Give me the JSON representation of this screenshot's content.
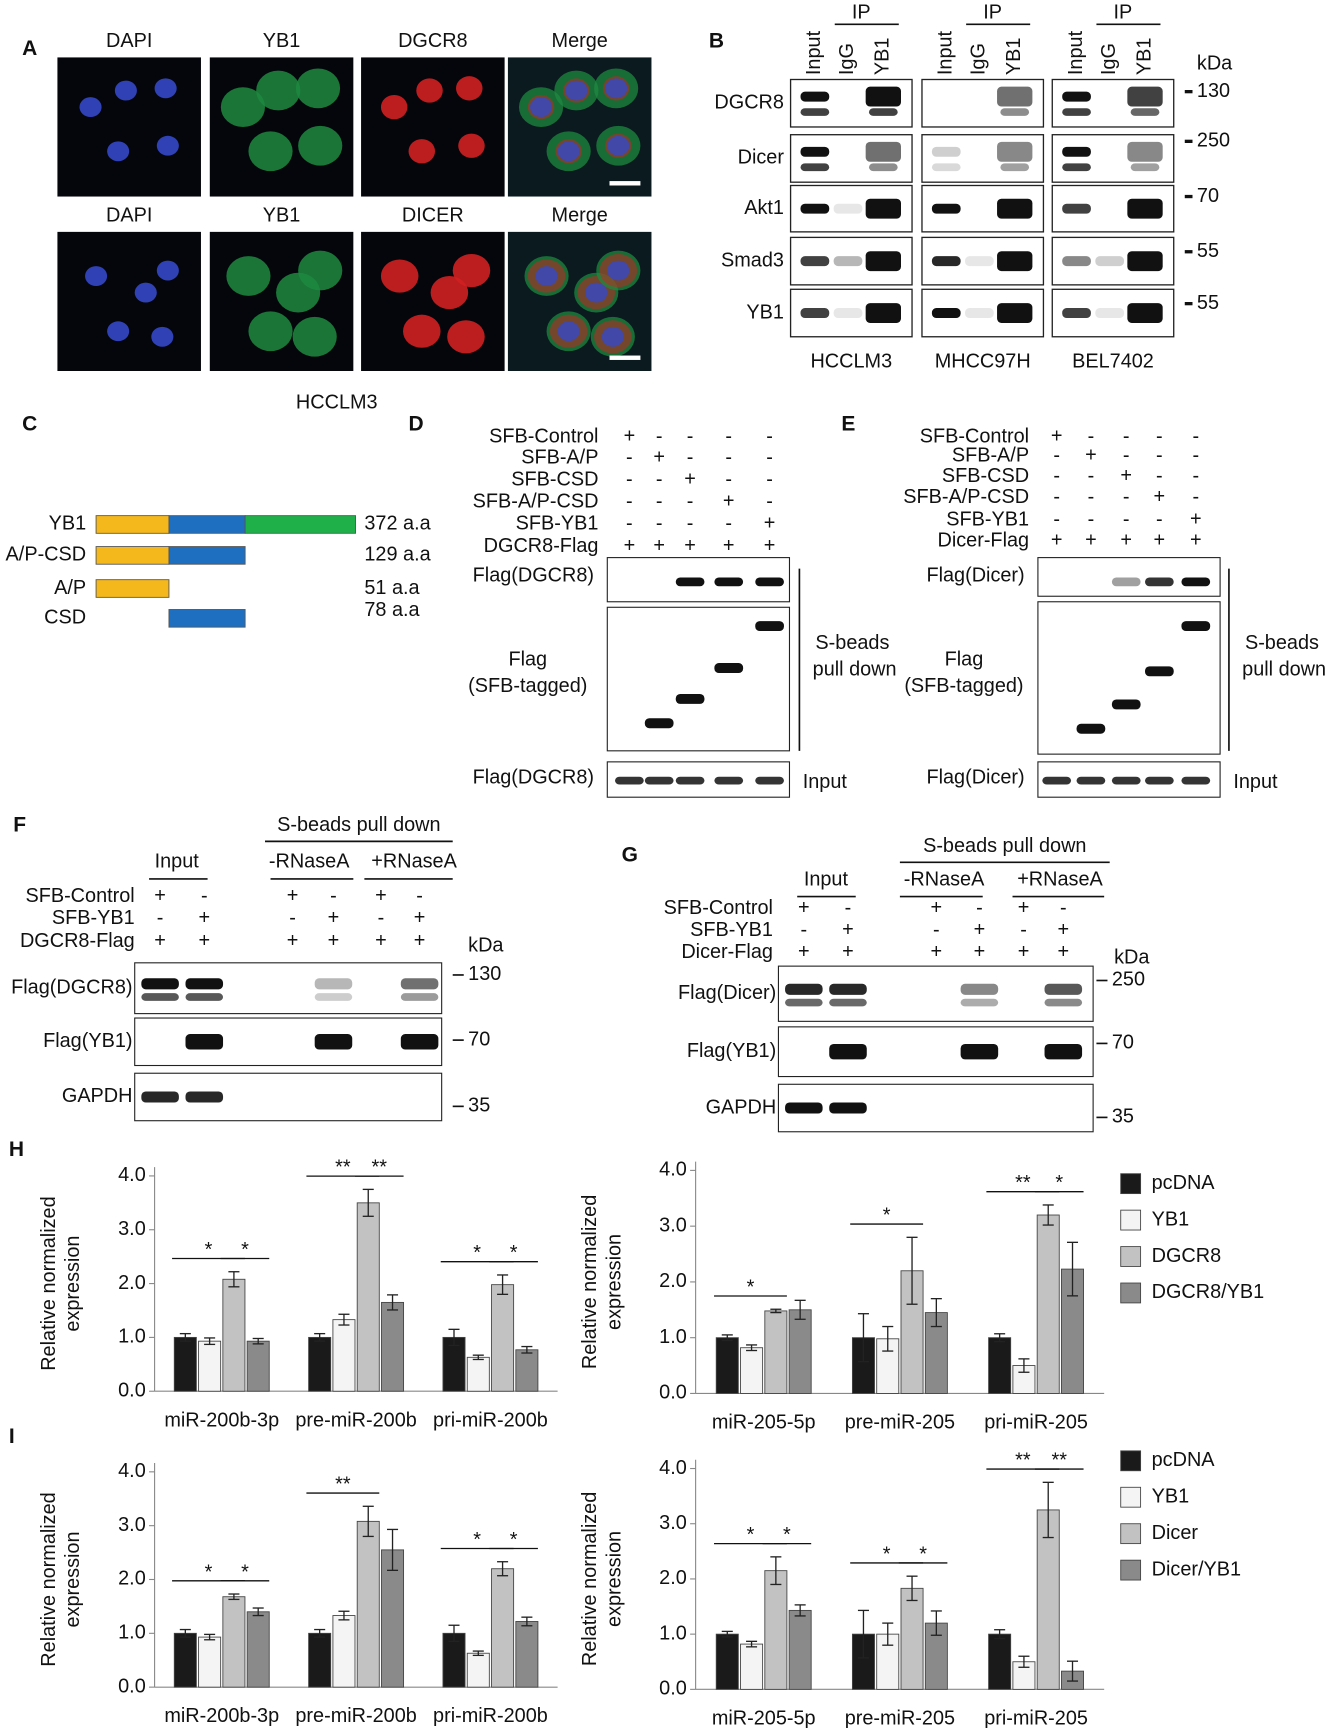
{
  "panel_a": {
    "label": "A",
    "row1": [
      "DAPI",
      "YB1",
      "DGCR8",
      "Merge"
    ],
    "row2": [
      "DAPI",
      "YB1",
      "DICER",
      "Merge"
    ],
    "cell_line": "HCCLM3"
  },
  "panel_b": {
    "label": "B",
    "ip_groups": [
      {
        "ip": "IP",
        "lanes": [
          "Input",
          "IgG",
          "YB1"
        ]
      },
      {
        "ip": "IP",
        "lanes": [
          "Input",
          "IgG",
          "YB1"
        ]
      },
      {
        "ip": "IP",
        "lanes": [
          "Input",
          "IgG",
          "YB1"
        ]
      }
    ],
    "kda": "kDa",
    "proteins": [
      "DGCR8",
      "Dicer",
      "Akt1",
      "Smad3",
      "YB1"
    ],
    "markers": [
      130,
      250,
      70,
      55,
      55
    ],
    "cell_lines": [
      "HCCLM3",
      "MHCC97H",
      "BEL7402"
    ]
  },
  "panel_c": {
    "label": "C",
    "constructs": [
      {
        "name": "YB1",
        "length": "372 a.a"
      },
      {
        "name": "A/P-CSD",
        "length": "129 a.a"
      },
      {
        "name": "A/P",
        "length": "51 a.a"
      },
      {
        "name": "CSD",
        "length": "78 a.a"
      }
    ]
  },
  "panel_d": {
    "label": "D",
    "conditions": [
      {
        "name": "SFB-Control",
        "signs": [
          "+",
          "-",
          "-",
          "-",
          "-"
        ]
      },
      {
        "name": "SFB-A/P",
        "signs": [
          "-",
          "+",
          "-",
          "-",
          "-"
        ]
      },
      {
        "name": "SFB-CSD",
        "signs": [
          "-",
          "-",
          "+",
          "-",
          "-"
        ]
      },
      {
        "name": "SFB-A/P-CSD",
        "signs": [
          "-",
          "-",
          "-",
          "+",
          "-"
        ]
      },
      {
        "name": "SFB-YB1",
        "signs": [
          "-",
          "-",
          "-",
          "-",
          "+"
        ]
      },
      {
        "name": "DGCR8-Flag",
        "signs": [
          "+",
          "+",
          "+",
          "+",
          "+"
        ]
      }
    ],
    "blots": [
      "Flag(DGCR8)",
      [
        "Flag",
        "(SFB-tagged)"
      ],
      "Flag(DGCR8)"
    ],
    "pulldown": [
      "S-beads",
      "pull down"
    ],
    "input": "Input"
  },
  "panel_e": {
    "label": "E",
    "conditions": [
      {
        "name": "SFB-Control",
        "signs": [
          "+",
          "-",
          "-",
          "-",
          "-"
        ]
      },
      {
        "name": "SFB-A/P",
        "signs": [
          "-",
          "+",
          "-",
          "-",
          "-"
        ]
      },
      {
        "name": "SFB-CSD",
        "signs": [
          "-",
          "-",
          "+",
          "-",
          "-"
        ]
      },
      {
        "name": "SFB-A/P-CSD",
        "signs": [
          "-",
          "-",
          "-",
          "+",
          "-"
        ]
      },
      {
        "name": "SFB-YB1",
        "signs": [
          "-",
          "-",
          "-",
          "-",
          "+"
        ]
      },
      {
        "name": "Dicer-Flag",
        "signs": [
          "+",
          "+",
          "+",
          "+",
          "+"
        ]
      }
    ],
    "blots": [
      "Flag(Dicer)",
      [
        "Flag",
        "(SFB-tagged)"
      ],
      "Flag(Dicer)"
    ],
    "pulldown": [
      "S-beads",
      "pull down"
    ],
    "input": "Input"
  },
  "panel_f": {
    "label": "F",
    "pulldown": "S-beads pull down",
    "input": "Input",
    "treatments": [
      "-RNaseA",
      "+RNaseA"
    ],
    "conditions": [
      {
        "name": "SFB-Control",
        "signs": [
          "+",
          "-",
          "+",
          "-",
          "+",
          "-"
        ]
      },
      {
        "name": "SFB-YB1",
        "signs": [
          "-",
          "+",
          "-",
          "+",
          "-",
          "+"
        ]
      },
      {
        "name": "DGCR8-Flag",
        "signs": [
          "+",
          "+",
          "+",
          "+",
          "+",
          "+"
        ]
      }
    ],
    "kda": "kDa",
    "blots": [
      "Flag(DGCR8)",
      "Flag(YB1)",
      "GAPDH"
    ],
    "markers": [
      130,
      70,
      35
    ]
  },
  "panel_g": {
    "label": "G",
    "pulldown": "S-beads pull down",
    "input": "Input",
    "treatments": [
      "-RNaseA",
      "+RNaseA"
    ],
    "conditions": [
      {
        "name": "SFB-Control",
        "signs": [
          "+",
          "-",
          "+",
          "-",
          "+",
          "-"
        ]
      },
      {
        "name": "SFB-YB1",
        "signs": [
          "-",
          "+",
          "-",
          "+",
          "-",
          "+"
        ]
      },
      {
        "name": "Dicer-Flag",
        "signs": [
          "+",
          "+",
          "+",
          "+",
          "+",
          "+"
        ]
      }
    ],
    "kda": "kDa",
    "blots": [
      "Flag(Dicer)",
      "Flag(YB1)",
      "GAPDH"
    ],
    "markers": [
      250,
      70,
      35
    ]
  },
  "panel_h": "H",
  "panel_i": "I",
  "chart_data": [
    {
      "type": "bar",
      "ylabel": [
        "Relative normalized",
        "expression"
      ],
      "categories": [
        "miR-200b-3p",
        "pre-miR-200b",
        "pri-miR-200b"
      ],
      "series": [
        {
          "name": "pcDNA",
          "color": "#1a1a1a",
          "values": [
            1.0,
            1.0,
            1.0
          ],
          "errors": [
            0.07,
            0.07,
            0.15
          ]
        },
        {
          "name": "YB1",
          "color": "#f4f4f4",
          "values": [
            0.93,
            1.33,
            0.63
          ],
          "errors": [
            0.06,
            0.1,
            0.04
          ]
        },
        {
          "name": "DGCR8",
          "color": "#c2c2c2",
          "values": [
            2.08,
            3.5,
            1.98
          ],
          "errors": [
            0.14,
            0.25,
            0.18
          ]
        },
        {
          "name": "DGCR8/YB1",
          "color": "#8a8a8a",
          "values": [
            0.93,
            1.65,
            0.77
          ],
          "errors": [
            0.05,
            0.14,
            0.06
          ]
        }
      ],
      "ylim": [
        0,
        4
      ],
      "yticks": [
        {
          "value": 0,
          "label": "0.0"
        },
        {
          "value": 1,
          "label": "1.0"
        },
        {
          "value": 2,
          "label": "2.0"
        },
        {
          "value": 3,
          "label": "3.0"
        },
        {
          "value": 4,
          "label": "4.0"
        }
      ],
      "annotations": [
        "*",
        "*",
        "**",
        "**",
        "*",
        "*"
      ],
      "legend": false
    },
    {
      "type": "bar",
      "ylabel": [
        "Relative normalized",
        "expression"
      ],
      "categories": [
        "miR-205-5p",
        "pre-miR-205",
        "pri-miR-205"
      ],
      "series": [
        {
          "name": "pcDNA",
          "color": "#1a1a1a",
          "values": [
            1.0,
            1.0,
            1.0
          ],
          "errors": [
            0.05,
            0.43,
            0.07
          ]
        },
        {
          "name": "YB1",
          "color": "#f4f4f4",
          "values": [
            0.82,
            0.98,
            0.5
          ],
          "errors": [
            0.05,
            0.22,
            0.12
          ]
        },
        {
          "name": "DGCR8",
          "color": "#c2c2c2",
          "values": [
            1.48,
            2.2,
            3.2
          ],
          "errors": [
            0.03,
            0.6,
            0.18
          ]
        },
        {
          "name": "DGCR8/YB1",
          "color": "#8a8a8a",
          "values": [
            1.5,
            1.45,
            2.23
          ],
          "errors": [
            0.17,
            0.25,
            0.48
          ]
        }
      ],
      "ylim": [
        0,
        4
      ],
      "yticks": [
        {
          "value": 0,
          "label": "0.0"
        },
        {
          "value": 1,
          "label": "1.0"
        },
        {
          "value": 2,
          "label": "2.0"
        },
        {
          "value": 3,
          "label": "3.0"
        },
        {
          "value": 4,
          "label": "4.0"
        }
      ],
      "annotations": [
        "*",
        "*",
        "**",
        "*"
      ],
      "legend": "right"
    },
    {
      "type": "bar",
      "ylabel": [
        "Relative normalized",
        "expression"
      ],
      "categories": [
        "miR-200b-3p",
        "pre-miR-200b",
        "pri-miR-200b"
      ],
      "series": [
        {
          "name": "pcDNA",
          "color": "#1a1a1a",
          "values": [
            1.0,
            1.0,
            1.0
          ],
          "errors": [
            0.07,
            0.07,
            0.15
          ]
        },
        {
          "name": "YB1",
          "color": "#f4f4f4",
          "values": [
            0.93,
            1.33,
            0.63
          ],
          "errors": [
            0.05,
            0.08,
            0.04
          ]
        },
        {
          "name": "Dicer",
          "color": "#c2c2c2",
          "values": [
            1.68,
            3.08,
            2.2
          ],
          "errors": [
            0.05,
            0.28,
            0.13
          ]
        },
        {
          "name": "Dicer/YB1",
          "color": "#8a8a8a",
          "values": [
            1.4,
            2.55,
            1.22
          ],
          "errors": [
            0.07,
            0.38,
            0.08
          ]
        }
      ],
      "ylim": [
        0,
        4
      ],
      "yticks": [
        {
          "value": 0,
          "label": "0.0"
        },
        {
          "value": 1,
          "label": "1.0"
        },
        {
          "value": 2,
          "label": "2.0"
        },
        {
          "value": 3,
          "label": "3.0"
        },
        {
          "value": 4,
          "label": "4.0"
        }
      ],
      "annotations": [
        "*",
        "*",
        "**",
        "*",
        "*"
      ],
      "legend": false
    },
    {
      "type": "bar",
      "ylabel": [
        "Relative normalized",
        "expression"
      ],
      "categories": [
        "miR-205-5p",
        "pre-miR-205",
        "pri-miR-205"
      ],
      "series": [
        {
          "name": "pcDNA",
          "color": "#1a1a1a",
          "values": [
            1.0,
            1.0,
            1.0
          ],
          "errors": [
            0.05,
            0.43,
            0.08
          ]
        },
        {
          "name": "YB1",
          "color": "#f4f4f4",
          "values": [
            0.82,
            1.0,
            0.5
          ],
          "errors": [
            0.05,
            0.2,
            0.1
          ]
        },
        {
          "name": "Dicer",
          "color": "#c2c2c2",
          "values": [
            2.15,
            1.83,
            3.25
          ],
          "errors": [
            0.25,
            0.22,
            0.5
          ]
        },
        {
          "name": "Dicer/YB1",
          "color": "#8a8a8a",
          "values": [
            1.43,
            1.2,
            0.33
          ],
          "errors": [
            0.1,
            0.22,
            0.18
          ]
        }
      ],
      "ylim": [
        0,
        4
      ],
      "yticks": [
        {
          "value": 0,
          "label": "0.0"
        },
        {
          "value": 1,
          "label": "1.0"
        },
        {
          "value": 2,
          "label": "2.0"
        },
        {
          "value": 3,
          "label": "3.0"
        },
        {
          "value": 4,
          "label": "4.0"
        }
      ],
      "annotations": [
        "*",
        "*",
        "*",
        "*",
        "**",
        "**"
      ],
      "legend": "right"
    }
  ]
}
